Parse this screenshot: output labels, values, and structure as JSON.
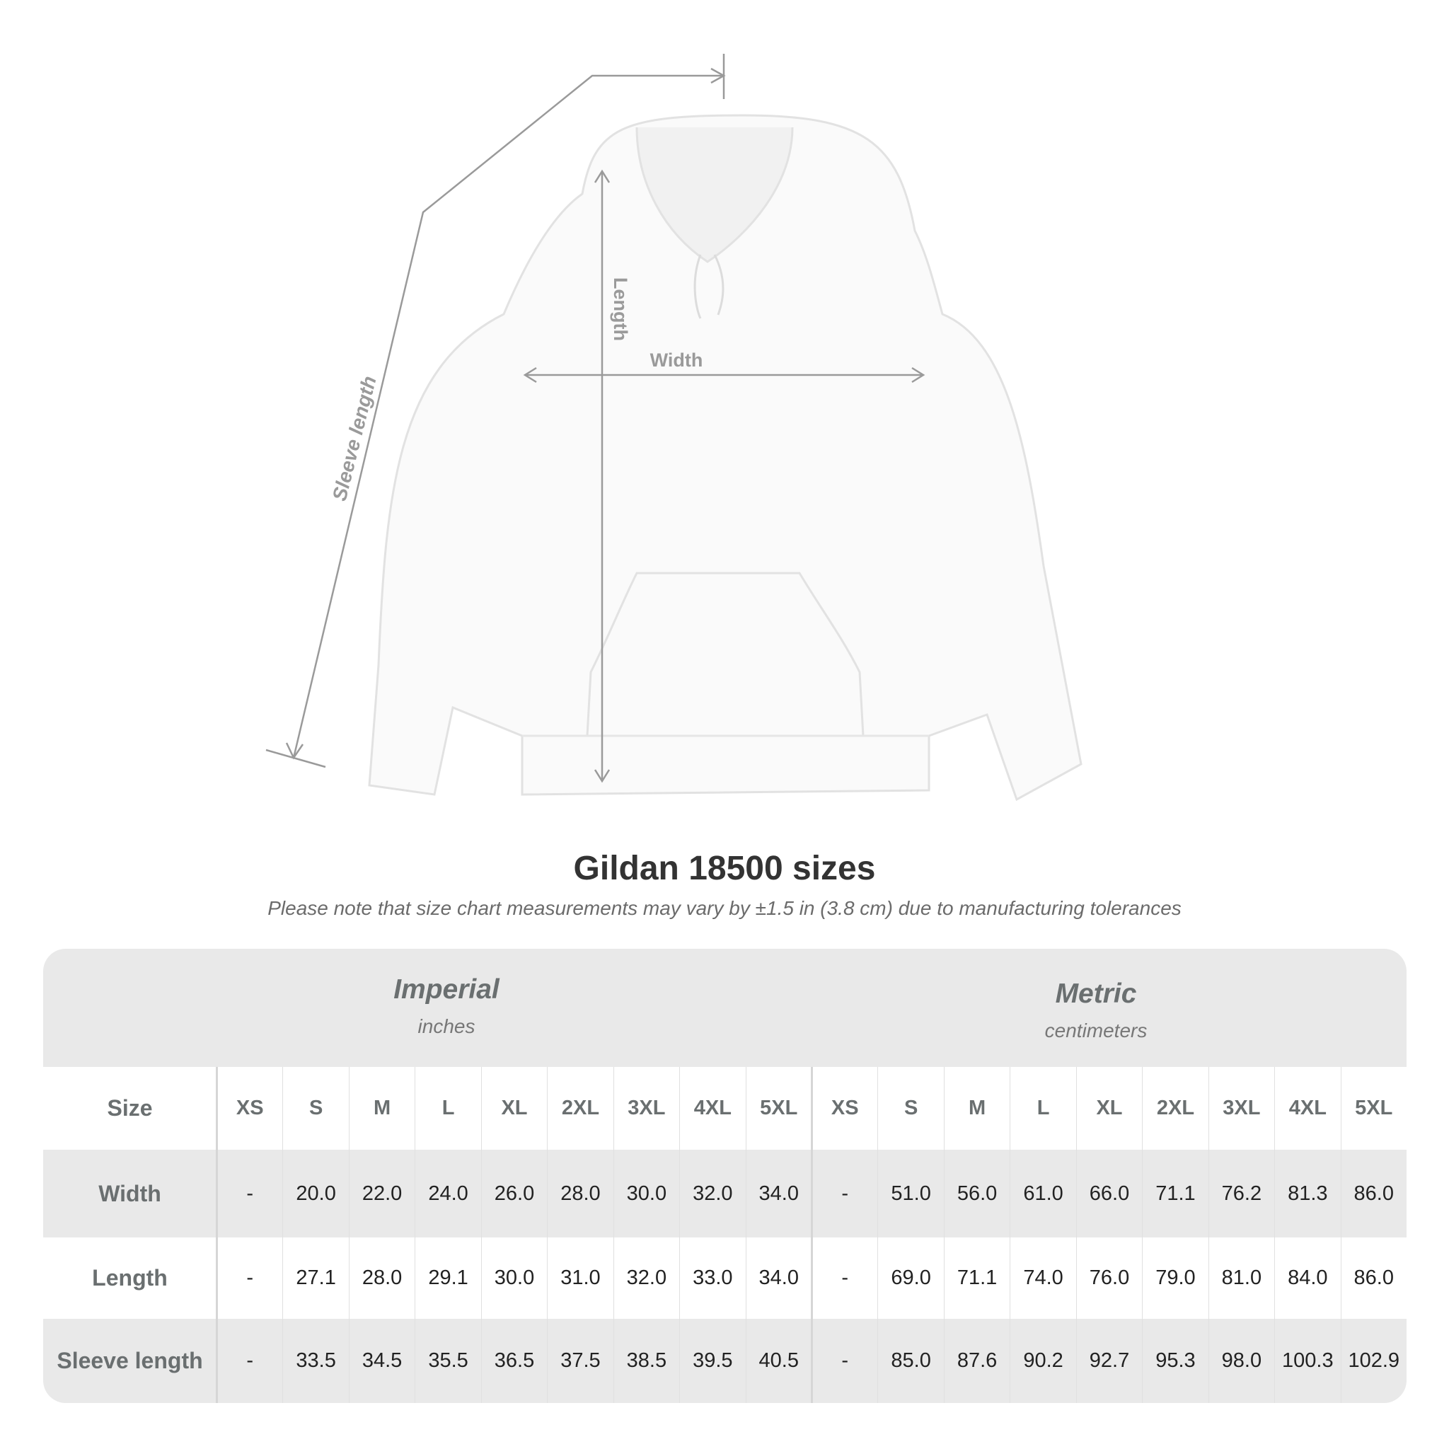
{
  "figure": {
    "labels": {
      "length": "Length",
      "width": "Width",
      "sleeve_length": "Sleeve length"
    },
    "line_color": "#9a9a9a"
  },
  "title": "Gildan 18500 sizes",
  "note": "Please note that size chart measurements may vary by ±1.5 in (3.8 cm) due to manufacturing tolerances",
  "table": {
    "imperial": {
      "name": "Imperial",
      "unit": "inches"
    },
    "metric": {
      "name": "Metric",
      "unit": "centimeters"
    },
    "size_label": "Size",
    "sizes": [
      "XS",
      "S",
      "M",
      "L",
      "XL",
      "2XL",
      "3XL",
      "4XL",
      "5XL"
    ],
    "rows": [
      {
        "label": "Width",
        "imperial": [
          "-",
          "20.0",
          "22.0",
          "24.0",
          "26.0",
          "28.0",
          "30.0",
          "32.0",
          "34.0"
        ],
        "metric": [
          "-",
          "51.0",
          "56.0",
          "61.0",
          "66.0",
          "71.1",
          "76.2",
          "81.3",
          "86.0"
        ]
      },
      {
        "label": "Length",
        "imperial": [
          "-",
          "27.1",
          "28.0",
          "29.1",
          "30.0",
          "31.0",
          "32.0",
          "33.0",
          "34.0"
        ],
        "metric": [
          "-",
          "69.0",
          "71.1",
          "74.0",
          "76.0",
          "79.0",
          "81.0",
          "84.0",
          "86.0"
        ]
      },
      {
        "label": "Sleeve length",
        "imperial": [
          "-",
          "33.5",
          "34.5",
          "35.5",
          "36.5",
          "37.5",
          "38.5",
          "39.5",
          "40.5"
        ],
        "metric": [
          "-",
          "85.0",
          "87.6",
          "90.2",
          "92.7",
          "95.3",
          "98.0",
          "100.3",
          "102.9"
        ]
      }
    ],
    "band_color": "#e9e9e9",
    "label_color": "#6a6f70"
  }
}
